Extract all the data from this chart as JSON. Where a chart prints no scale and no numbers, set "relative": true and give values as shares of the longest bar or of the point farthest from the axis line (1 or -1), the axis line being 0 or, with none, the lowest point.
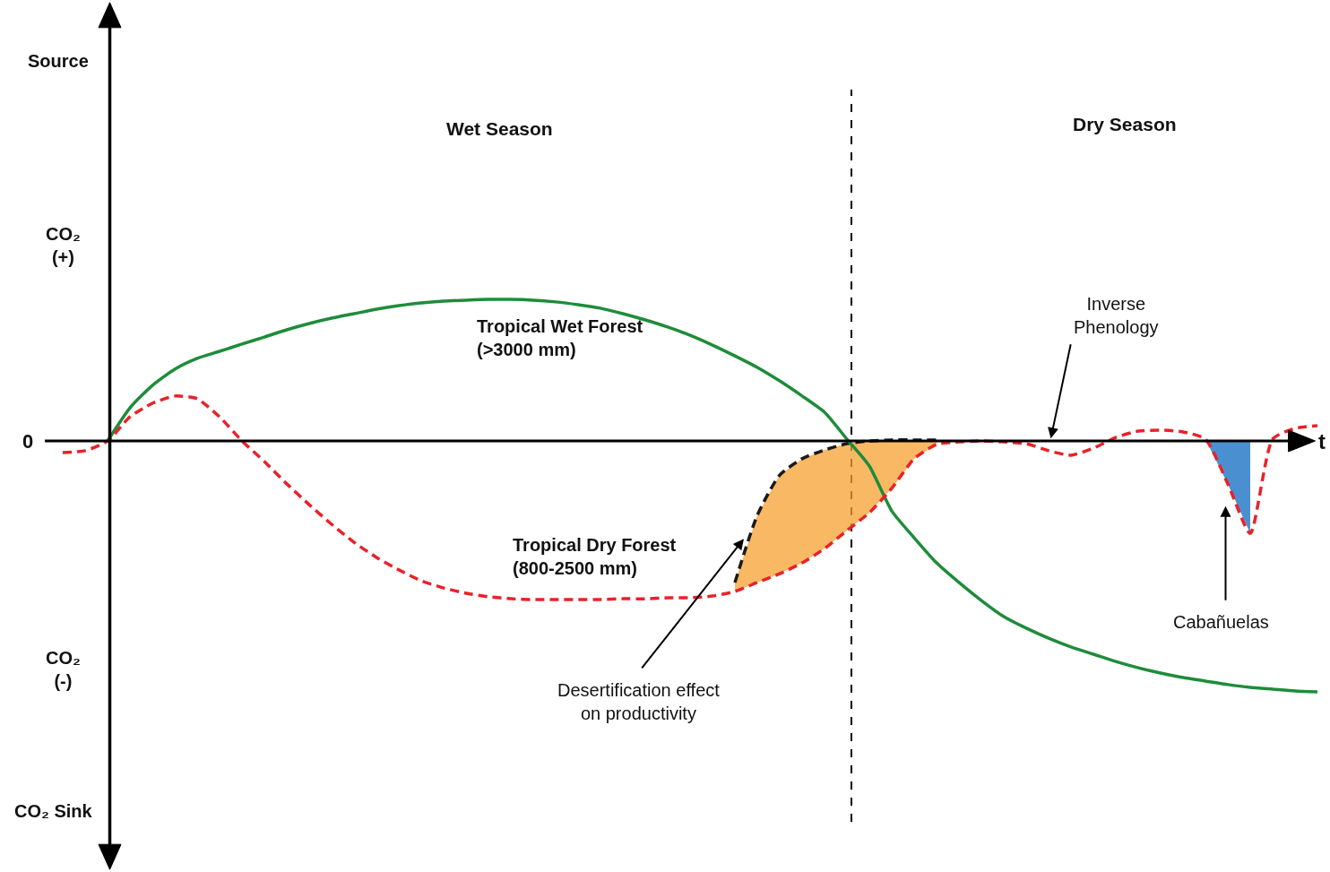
{
  "chart_data": {
    "type": "line",
    "relative": true,
    "categories": [
      null,
      null,
      null,
      null,
      null,
      null,
      null,
      null,
      null,
      null,
      null,
      null,
      null,
      null,
      null,
      null,
      null,
      null,
      null,
      null,
      null,
      null,
      null,
      null,
      null,
      null,
      null,
      null,
      null,
      null,
      null,
      null,
      null,
      null,
      null,
      null,
      null,
      null,
      null,
      null,
      null,
      null,
      null,
      null,
      null,
      null,
      null,
      null,
      null,
      null,
      null,
      null,
      null,
      null,
      null,
      null,
      null
    ],
    "series": [
      {
        "name": "Tropical Wet Forest\n(>3000 mm)",
        "color": "#1e8c3a",
        "line_style": "solid",
        "values": [
          null,
          null,
          0,
          0.132,
          0.221,
          0.286,
          0.329,
          0.357,
          0.386,
          0.414,
          0.443,
          0.468,
          0.489,
          0.507,
          0.525,
          0.539,
          0.55,
          0.557,
          0.561,
          0.564,
          0.564,
          0.561,
          0.554,
          0.543,
          0.529,
          0.507,
          0.482,
          0.454,
          0.421,
          0.382,
          0.339,
          0.293,
          0.239,
          0.179,
          0.114,
          0.007,
          -0.1,
          -0.279,
          -0.386,
          -0.486,
          -0.564,
          -0.636,
          -0.7,
          -0.746,
          -0.786,
          -0.821,
          -0.85,
          -0.879,
          -0.904,
          -0.925,
          -0.943,
          -0.957,
          -0.971,
          -0.982,
          -0.989,
          -0.996,
          -1.0
        ]
      },
      {
        "name": "Tropical Dry Forest\n(800-2500 mm)",
        "color": "#e8222a",
        "line_style": "dashed",
        "values": [
          -0.046,
          -0.039,
          0,
          0.096,
          0.15,
          0.179,
          0.168,
          0.096,
          0,
          -0.082,
          -0.171,
          -0.254,
          -0.332,
          -0.404,
          -0.464,
          -0.514,
          -0.557,
          -0.586,
          -0.607,
          -0.621,
          -0.629,
          -0.632,
          -0.632,
          -0.632,
          -0.632,
          -0.629,
          -0.629,
          -0.625,
          -0.625,
          -0.618,
          -0.6,
          -0.564,
          -0.529,
          -0.486,
          -0.429,
          -0.357,
          -0.286,
          -0.189,
          -0.071,
          -0.014,
          -0.004,
          0,
          -0.004,
          -0.011,
          -0.039,
          -0.057,
          -0.029,
          0.014,
          0.039,
          0.043,
          0.036,
          0.007,
          -0.171,
          -0.368,
          0.007,
          0.05,
          0.061
        ]
      },
      {
        "color": "#1a1a1a",
        "line_style": "dashed",
        "values": [
          null,
          null,
          null,
          null,
          null,
          null,
          null,
          null,
          null,
          null,
          null,
          null,
          null,
          null,
          null,
          null,
          null,
          null,
          null,
          null,
          null,
          null,
          null,
          null,
          null,
          null,
          null,
          null,
          null,
          null,
          -0.564,
          -0.296,
          -0.136,
          -0.071,
          -0.036,
          -0.011,
          0,
          0.004,
          0.004,
          0.004,
          null,
          null,
          null,
          null,
          null,
          null,
          null,
          null,
          null,
          null,
          null,
          null,
          null,
          null,
          null,
          null,
          null
        ],
        "upper": [
          null,
          null,
          null,
          null,
          null,
          null,
          null,
          null,
          null,
          null,
          null,
          null,
          null,
          null,
          null,
          null,
          null,
          null,
          null,
          null,
          null,
          null,
          null,
          null,
          null,
          null,
          null,
          null,
          null,
          null,
          -0.564,
          -0.296,
          -0.136,
          -0.071,
          -0.036,
          -0.011,
          0,
          0.004,
          0.004,
          0.004,
          null,
          null,
          null,
          null,
          null,
          null,
          null,
          null,
          null,
          null,
          null,
          null,
          null,
          null,
          null,
          null,
          null
        ],
        "lower": [
          null,
          null,
          null,
          null,
          null,
          null,
          null,
          null,
          null,
          null,
          null,
          null,
          null,
          null,
          null,
          null,
          null,
          null,
          null,
          null,
          null,
          null,
          null,
          null,
          null,
          null,
          null,
          null,
          null,
          null,
          -0.6,
          -0.564,
          -0.529,
          -0.486,
          -0.429,
          -0.357,
          -0.286,
          -0.189,
          -0.071,
          -0.014,
          null,
          null,
          null,
          null,
          null,
          null,
          null,
          null,
          null,
          null,
          null,
          null,
          null,
          null,
          null,
          null,
          null
        ]
      },
      {
        "type": "area",
        "color": "#4a90d0",
        "values": [
          null,
          null,
          null,
          null,
          null,
          null,
          null,
          null,
          null,
          null,
          null,
          null,
          null,
          null,
          null,
          null,
          null,
          null,
          null,
          null,
          null,
          null,
          null,
          null,
          null,
          null,
          null,
          null,
          null,
          null,
          null,
          null,
          null,
          null,
          null,
          null,
          null,
          null,
          null,
          null,
          null,
          null,
          null,
          null,
          null,
          null,
          null,
          null,
          null,
          null,
          null,
          0.007,
          -0.171,
          -0.368,
          null,
          null,
          null
        ]
      }
    ],
    "annotations": [
      "Source",
      "CO₂\n(+)",
      "0",
      "CO₂\n(-)",
      "CO₂ Sink",
      "t",
      "Wet Season",
      "Dry Season",
      "Desertification effect\non productivity",
      "Inverse\nPhenology",
      "Cabañuelas"
    ],
    "legend": false
  }
}
